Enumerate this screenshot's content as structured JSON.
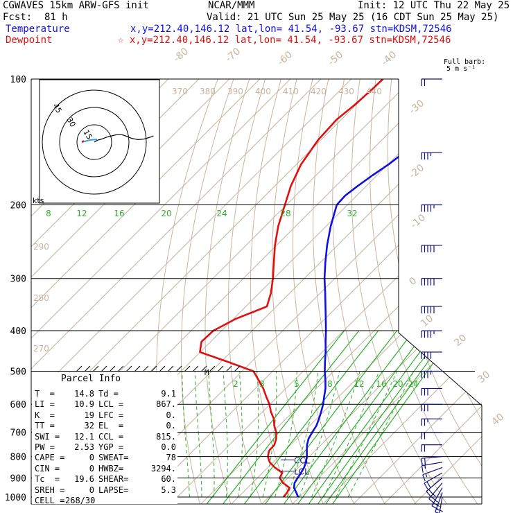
{
  "header": {
    "model": "CGWAVES 15km ARW-GFS init",
    "org": "NCAR/MMM",
    "init": "Init: 12 UTC Thu 22 May 25",
    "fcst_label": "Fcst:",
    "fcst_value": "81 h",
    "valid": "Valid: 21 UTC Sun 25 May 25 (16 CDT Sun 25 May 25)",
    "temp_label": "Temperature",
    "temp_loc": "x,y=212.40,146.12   lat,lon= 41.54, -93.67   stn=KDSM,72546",
    "dew_label": "Dewpoint",
    "dew_loc": "☆ x,y=212.40,146.12   lat,lon= 41.54, -93.67   stn=KDSM,72546",
    "full_barb": "Full barb:",
    "full_barb_units": "5 m s⁻¹"
  },
  "colors": {
    "temperature": "#1010e0",
    "dewpoint": "#e01010",
    "isotherm": "#c8b4a0",
    "mixing_ratio": "#2ab02a",
    "pressure_line": "#000000",
    "wind_barb": "#10107a",
    "hodograph_wind": "#000000",
    "hodograph_storm": "#30a0e0"
  },
  "parcel_info": {
    "title": "Parcel Info",
    "rows": [
      [
        "T  =",
        "14.8",
        "Td =",
        "9.1"
      ],
      [
        "LI =",
        "10.9",
        "LCL =",
        "867."
      ],
      [
        "K  =",
        "19",
        "LFC =",
        "0."
      ],
      [
        "TT =",
        "32",
        "EL  =",
        "0."
      ],
      [
        "SWI =",
        "12.1",
        "CCL =",
        "815."
      ],
      [
        "PW =",
        "2.53",
        "YGP =",
        "0.0"
      ],
      [
        "CAPE =",
        "0",
        "SWEAT=",
        "78"
      ],
      [
        "CIN =",
        "0",
        "HWBZ=",
        "3294."
      ],
      [
        "Tc  =",
        "19.6",
        "SHEAR=",
        "60."
      ],
      [
        "SREH =",
        "0",
        "LAPSE=",
        "5.3"
      ],
      [
        "CELL =",
        "268/30",
        "",
        ""
      ]
    ]
  },
  "levels_labels": {
    "ccl": "CCL",
    "lcl": "LCL",
    "m": "M"
  },
  "hodograph": {
    "units": "kts",
    "ring_labels": [
      "15",
      "30",
      "45"
    ]
  },
  "chart_data": {
    "type": "line",
    "title": "",
    "xlabel": "",
    "ylabel": "",
    "pressure_ticks": [
      100,
      200,
      300,
      400,
      500,
      600,
      700,
      800,
      900,
      1000
    ],
    "isotherm_labels": [
      "-80",
      "-70",
      "-60",
      "-50",
      "-40",
      "-30",
      "-20",
      "-10",
      "0",
      "10",
      "20",
      "30",
      "40"
    ],
    "theta_labels_top": [
      "370",
      "380",
      "390",
      "400",
      "410",
      "420",
      "430",
      "440"
    ],
    "theta_labels_left": [
      "290",
      "280",
      "270"
    ],
    "mixing_ratio_labels_upper": [
      "8",
      "12",
      "16",
      "20",
      "24",
      "28",
      "32"
    ],
    "mixing_ratio_labels_lower": [
      "2",
      "3",
      "5",
      "8",
      "12",
      "16",
      "20",
      "24"
    ],
    "series": [
      {
        "name": "Temperature",
        "color": "#1010e0",
        "points": [
          [
            1000,
            19.6
          ],
          [
            975,
            17.5
          ],
          [
            950,
            15.2
          ],
          [
            925,
            13.8
          ],
          [
            900,
            13.2
          ],
          [
            875,
            12.6
          ],
          [
            850,
            11.9
          ],
          [
            825,
            10.7
          ],
          [
            800,
            9.2
          ],
          [
            775,
            7.3
          ],
          [
            750,
            5.4
          ],
          [
            725,
            3.9
          ],
          [
            700,
            3.0
          ],
          [
            675,
            2.2
          ],
          [
            650,
            0.8
          ],
          [
            625,
            -0.8
          ],
          [
            600,
            -2.6
          ],
          [
            575,
            -4.8
          ],
          [
            550,
            -7.0
          ],
          [
            525,
            -9.8
          ],
          [
            500,
            -12.9
          ],
          [
            475,
            -15.9
          ],
          [
            450,
            -18.9
          ],
          [
            425,
            -22.3
          ],
          [
            400,
            -25.8
          ],
          [
            375,
            -29.7
          ],
          [
            350,
            -33.9
          ],
          [
            325,
            -38.4
          ],
          [
            300,
            -43.4
          ],
          [
            275,
            -48.3
          ],
          [
            250,
            -53.4
          ],
          [
            225,
            -58.5
          ],
          [
            200,
            -63.5
          ],
          [
            190,
            -63.8
          ],
          [
            180,
            -62.8
          ],
          [
            170,
            -61.5
          ],
          [
            160,
            -59.8
          ],
          [
            150,
            -58.6
          ],
          [
            140,
            -58.8
          ],
          [
            130,
            -59.6
          ],
          [
            120,
            -60.6
          ],
          [
            110,
            -61.3
          ],
          [
            100,
            -62.5
          ]
        ]
      },
      {
        "name": "Dewpoint",
        "color": "#e01010",
        "points": [
          [
            1000,
            14.8
          ],
          [
            975,
            14.5
          ],
          [
            950,
            13.7
          ],
          [
            925,
            10.0
          ],
          [
            900,
            7.3
          ],
          [
            875,
            6.5
          ],
          [
            850,
            2.3
          ],
          [
            825,
            -1.2
          ],
          [
            800,
            -3.6
          ],
          [
            775,
            -5.1
          ],
          [
            750,
            -5.3
          ],
          [
            725,
            -6.7
          ],
          [
            700,
            -8.8
          ],
          [
            675,
            -11.6
          ],
          [
            650,
            -14.0
          ],
          [
            625,
            -17.3
          ],
          [
            600,
            -20.2
          ],
          [
            575,
            -23.8
          ],
          [
            550,
            -27.4
          ],
          [
            525,
            -31.7
          ],
          [
            500,
            -36.3
          ],
          [
            475,
            -47.7
          ],
          [
            450,
            -60.1
          ],
          [
            425,
            -63.0
          ],
          [
            400,
            -62.7
          ],
          [
            375,
            -59.3
          ],
          [
            350,
            -53.1
          ],
          [
            325,
            -56.2
          ],
          [
            300,
            -60.3
          ],
          [
            275,
            -65.2
          ],
          [
            250,
            -70.5
          ],
          [
            225,
            -75.7
          ],
          [
            200,
            -80.5
          ],
          [
            180,
            -84.8
          ],
          [
            160,
            -88.5
          ],
          [
            140,
            -90.9
          ],
          [
            125,
            -91.5
          ],
          [
            115,
            -90.4
          ],
          [
            105,
            -89.8
          ],
          [
            100,
            -89.6
          ]
        ]
      }
    ],
    "wind_barbs": [
      {
        "p": 1000,
        "dir": 190,
        "spd_ms": 8
      },
      {
        "p": 975,
        "dir": 200,
        "spd_ms": 12
      },
      {
        "p": 950,
        "dir": 210,
        "spd_ms": 14
      },
      {
        "p": 925,
        "dir": 220,
        "spd_ms": 13
      },
      {
        "p": 900,
        "dir": 230,
        "spd_ms": 12
      },
      {
        "p": 875,
        "dir": 240,
        "spd_ms": 10
      },
      {
        "p": 850,
        "dir": 250,
        "spd_ms": 9
      },
      {
        "p": 825,
        "dir": 260,
        "spd_ms": 9
      },
      {
        "p": 800,
        "dir": 265,
        "spd_ms": 10
      },
      {
        "p": 750,
        "dir": 270,
        "spd_ms": 11
      },
      {
        "p": 700,
        "dir": 270,
        "spd_ms": 12
      },
      {
        "p": 650,
        "dir": 270,
        "spd_ms": 13
      },
      {
        "p": 600,
        "dir": 270,
        "spd_ms": 15
      },
      {
        "p": 550,
        "dir": 270,
        "spd_ms": 17
      },
      {
        "p": 500,
        "dir": 270,
        "spd_ms": 19
      },
      {
        "p": 450,
        "dir": 270,
        "spd_ms": 21
      },
      {
        "p": 400,
        "dir": 270,
        "spd_ms": 23
      },
      {
        "p": 350,
        "dir": 270,
        "spd_ms": 25
      },
      {
        "p": 300,
        "dir": 270,
        "spd_ms": 26
      },
      {
        "p": 250,
        "dir": 270,
        "spd_ms": 27
      },
      {
        "p": 200,
        "dir": 270,
        "spd_ms": 24
      },
      {
        "p": 150,
        "dir": 270,
        "spd_ms": 18
      },
      {
        "p": 100,
        "dir": 270,
        "spd_ms": 12
      }
    ],
    "hodograph_trace": [
      [
        0,
        0
      ],
      [
        5,
        -3
      ],
      [
        12,
        -5
      ],
      [
        20,
        -8
      ],
      [
        28,
        -10
      ],
      [
        36,
        -12
      ],
      [
        44,
        -12
      ],
      [
        50,
        -10
      ],
      [
        55,
        -8
      ],
      [
        60,
        -6
      ],
      [
        70,
        -4
      ],
      [
        80,
        -5
      ],
      [
        90,
        -8
      ],
      [
        95,
        -10
      ]
    ],
    "grid": true
  }
}
